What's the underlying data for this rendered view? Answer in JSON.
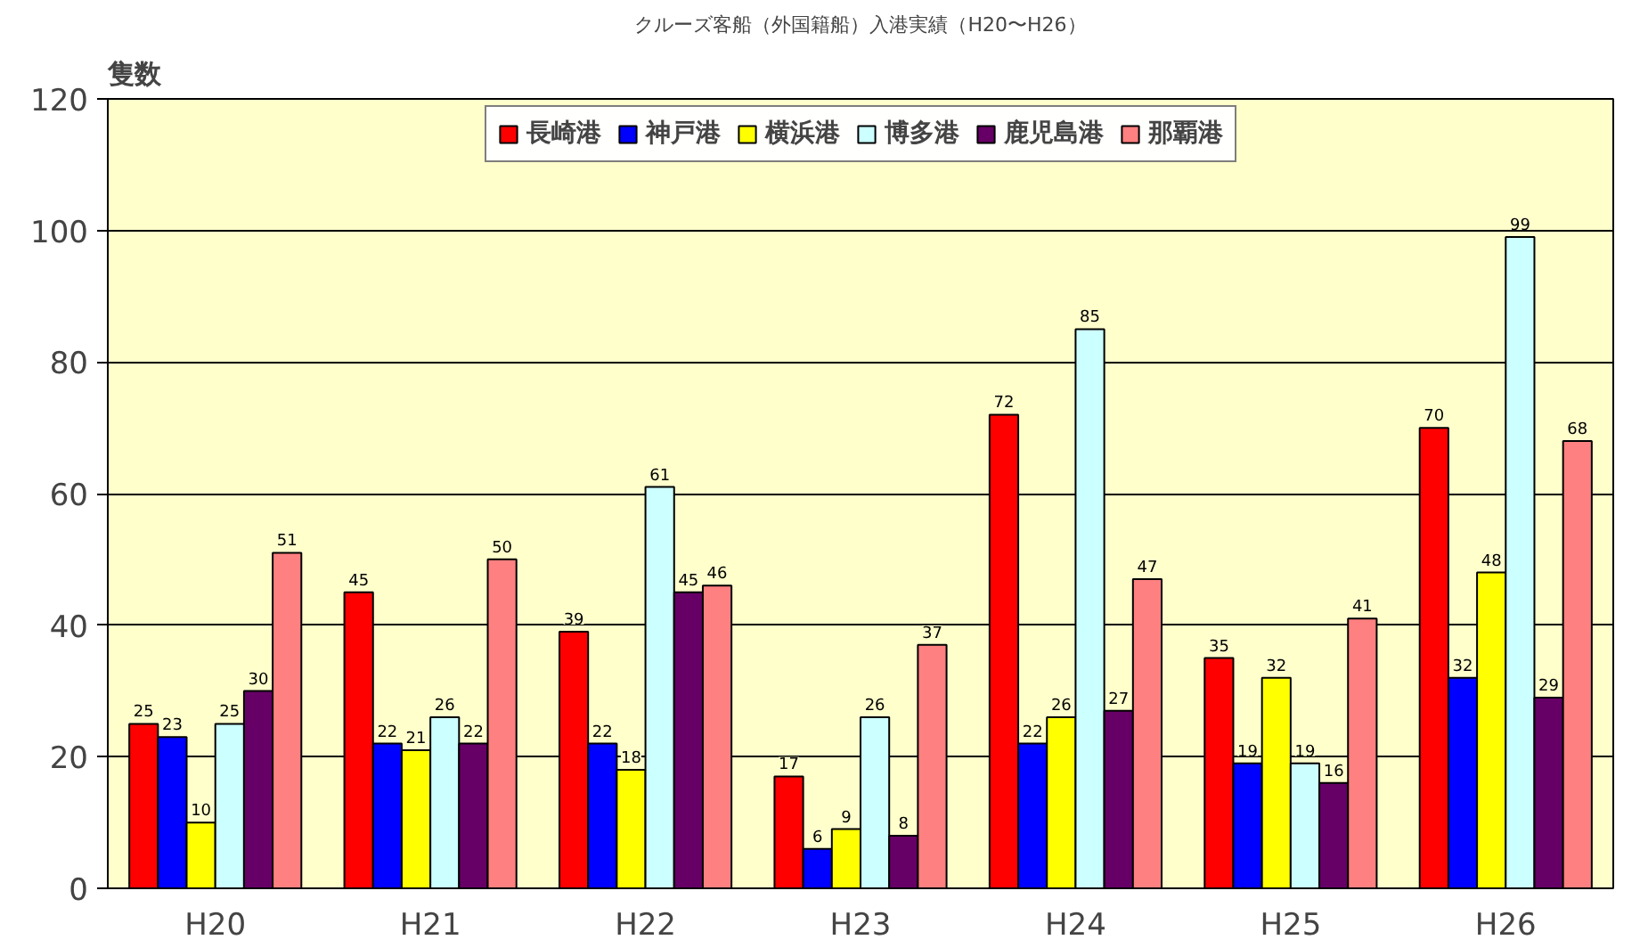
{
  "chart_data": {
    "type": "bar",
    "title": "クルーズ客船（外国籍船）入港実績（H20〜H26）",
    "ylabel": "隻数",
    "categories": [
      "H20",
      "H21",
      "H22",
      "H23",
      "H24",
      "H25",
      "H26"
    ],
    "series": [
      {
        "name": "長崎港",
        "color": "#ff0000",
        "values": [
          25,
          45,
          39,
          17,
          72,
          35,
          70
        ]
      },
      {
        "name": "神戸港",
        "color": "#0000ff",
        "values": [
          23,
          22,
          22,
          6,
          22,
          19,
          32
        ]
      },
      {
        "name": "横浜港",
        "color": "#ffff00",
        "values": [
          10,
          21,
          18,
          9,
          26,
          32,
          48
        ]
      },
      {
        "name": "博多港",
        "color": "#ccffff",
        "values": [
          25,
          26,
          61,
          26,
          85,
          19,
          99
        ]
      },
      {
        "name": "鹿児島港",
        "color": "#660066",
        "values": [
          30,
          22,
          45,
          8,
          27,
          16,
          29
        ]
      },
      {
        "name": "那覇港",
        "color": "#ff8080",
        "values": [
          51,
          50,
          46,
          37,
          47,
          41,
          68
        ]
      }
    ],
    "ylim": [
      0,
      120
    ],
    "yticks": [
      0,
      20,
      40,
      60,
      80,
      100,
      120
    ],
    "grid": "y",
    "legend": "top",
    "data_labels": true
  }
}
